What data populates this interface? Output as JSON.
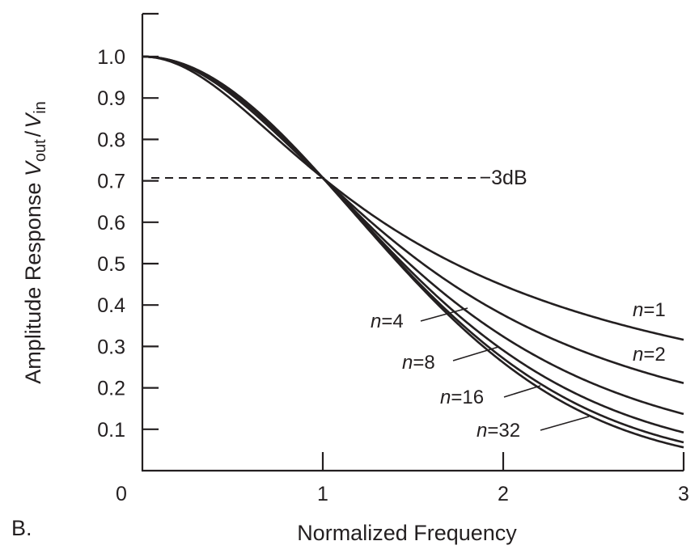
{
  "panel_label": "B.",
  "chart_data": {
    "type": "line",
    "title": "",
    "xlabel": "Normalized Frequency",
    "ylabel": {
      "prefix": "Amplitude Response ",
      "v1": "V",
      "sub1": "out",
      "slash": "/",
      "v2": "V",
      "sub2": "in"
    },
    "xlim": [
      0,
      3
    ],
    "ylim": [
      0,
      1.1
    ],
    "x_ticks": [
      "0",
      "1",
      "2",
      "3"
    ],
    "x_tick_values": [
      0,
      1,
      2,
      3
    ],
    "y_ticks": [
      "0.1",
      "0.2",
      "0.3",
      "0.4",
      "0.5",
      "0.6",
      "0.7",
      "0.8",
      "0.9",
      "1.0"
    ],
    "y_tick_values": [
      0.1,
      0.2,
      0.3,
      0.4,
      0.5,
      0.6,
      0.7,
      0.8,
      0.9,
      1.0
    ],
    "grid": false,
    "reference_line": {
      "label": "−3dB",
      "y": 0.707,
      "x_range": [
        0,
        1.85
      ],
      "style": "dashed"
    },
    "x": [
      0,
      0.25,
      0.5,
      0.75,
      1.0,
      1.25,
      1.5,
      1.75,
      2.0,
      2.25,
      2.5,
      2.75,
      3.0
    ],
    "series": [
      {
        "name": "n=1",
        "n_text": "n",
        "eq": "=1",
        "order": 1,
        "values": [
          1.0,
          0.97,
          0.894,
          0.8,
          0.707,
          0.625,
          0.555,
          0.496,
          0.447,
          0.406,
          0.371,
          0.342,
          0.316
        ]
      },
      {
        "name": "n=2",
        "n_text": "n",
        "eq": "=2",
        "order": 2,
        "values": [
          1.0,
          0.975,
          0.906,
          0.811,
          0.707,
          0.607,
          0.518,
          0.441,
          0.376,
          0.323,
          0.278,
          0.242,
          0.211
        ]
      },
      {
        "name": "n=4",
        "n_text": "n",
        "eq": "=4",
        "order": 4,
        "values": [
          1.0,
          0.977,
          0.913,
          0.818,
          0.707,
          0.594,
          0.488,
          0.395,
          0.317,
          0.254,
          0.203,
          0.164,
          0.137
        ]
      },
      {
        "name": "n=8",
        "n_text": "n",
        "eq": "=8",
        "order": 8,
        "values": [
          1.0,
          0.978,
          0.916,
          0.821,
          0.707,
          0.587,
          0.472,
          0.369,
          0.282,
          0.211,
          0.157,
          0.118,
          0.092
        ]
      },
      {
        "name": "n=16",
        "n_text": "n",
        "eq": "=16",
        "order": 16,
        "values": [
          1.0,
          0.979,
          0.918,
          0.823,
          0.707,
          0.583,
          0.463,
          0.355,
          0.263,
          0.189,
          0.133,
          0.093,
          0.068
        ]
      },
      {
        "name": "n=32",
        "n_text": "n",
        "eq": "=32",
        "order": 32,
        "values": [
          1.0,
          0.979,
          0.918,
          0.824,
          0.707,
          0.581,
          0.459,
          0.349,
          0.255,
          0.178,
          0.121,
          0.081,
          0.056
        ]
      }
    ]
  }
}
